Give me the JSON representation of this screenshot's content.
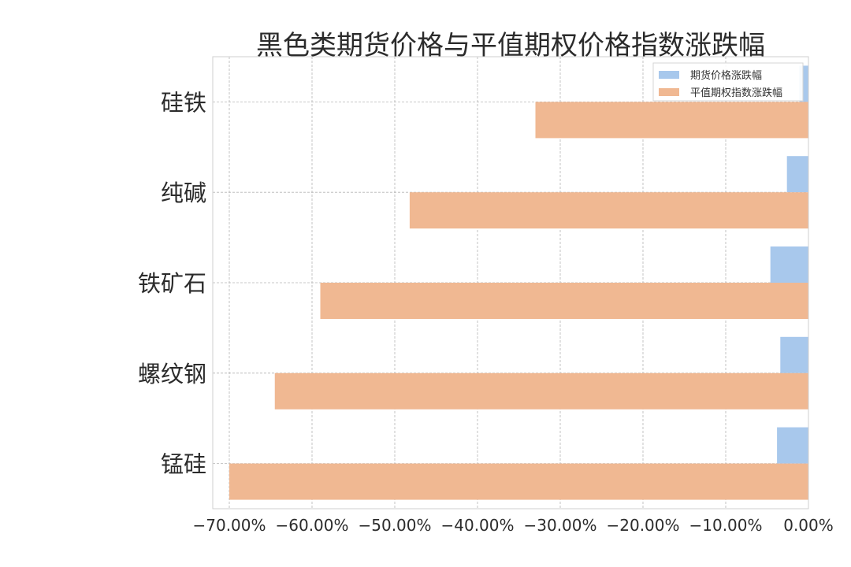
{
  "chart_data": {
    "type": "bar",
    "orientation": "horizontal",
    "title": "黑色类期货价格与平值期权价格指数涨跌幅",
    "categories": [
      "锰硅",
      "螺纹钢",
      "铁矿石",
      "纯碱",
      "硅铁"
    ],
    "series": [
      {
        "name": "期货价格涨跌幅",
        "color": "#a8c8ec",
        "values": [
          -3.8,
          -3.4,
          -4.6,
          -2.6,
          -1.1
        ]
      },
      {
        "name": "平值期权指数涨跌幅",
        "color": "#f0b892",
        "values": [
          -70.0,
          -64.5,
          -59.0,
          -48.2,
          -33.0
        ]
      }
    ],
    "xlim": [
      -72,
      0
    ],
    "x_ticks": [
      -70,
      -60,
      -50,
      -40,
      -30,
      -20,
      -10,
      0
    ],
    "x_tick_labels": [
      "−70.00%",
      "−60.00%",
      "−50.00%",
      "−40.00%",
      "−30.00%",
      "−20.00%",
      "−10.00%",
      "0.00%"
    ],
    "grid": true,
    "legend_position": "top-right"
  }
}
